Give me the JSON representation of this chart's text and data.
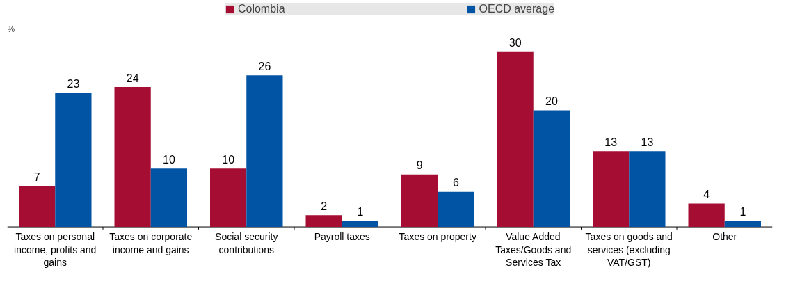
{
  "chart_data": {
    "type": "bar",
    "ylabel": "%",
    "data_labels": true,
    "legend": "top",
    "categories": [
      "Taxes on personal income, profits and gains",
      "Taxes on corporate income and gains",
      "Social security contributions",
      "Payroll taxes",
      "Taxes on property",
      "Value Added Taxes/Goods and Services Tax",
      "Taxes on goods and services (excluding VAT/GST)",
      "Other"
    ],
    "series": [
      {
        "name": "Colombia",
        "color": "#a50d32",
        "values": [
          7,
          24,
          10,
          2,
          9,
          30,
          13,
          4
        ]
      },
      {
        "name": "OECD average",
        "color": "#0054a3",
        "values": [
          23,
          10,
          26,
          1,
          6,
          20,
          13,
          1
        ]
      }
    ]
  }
}
